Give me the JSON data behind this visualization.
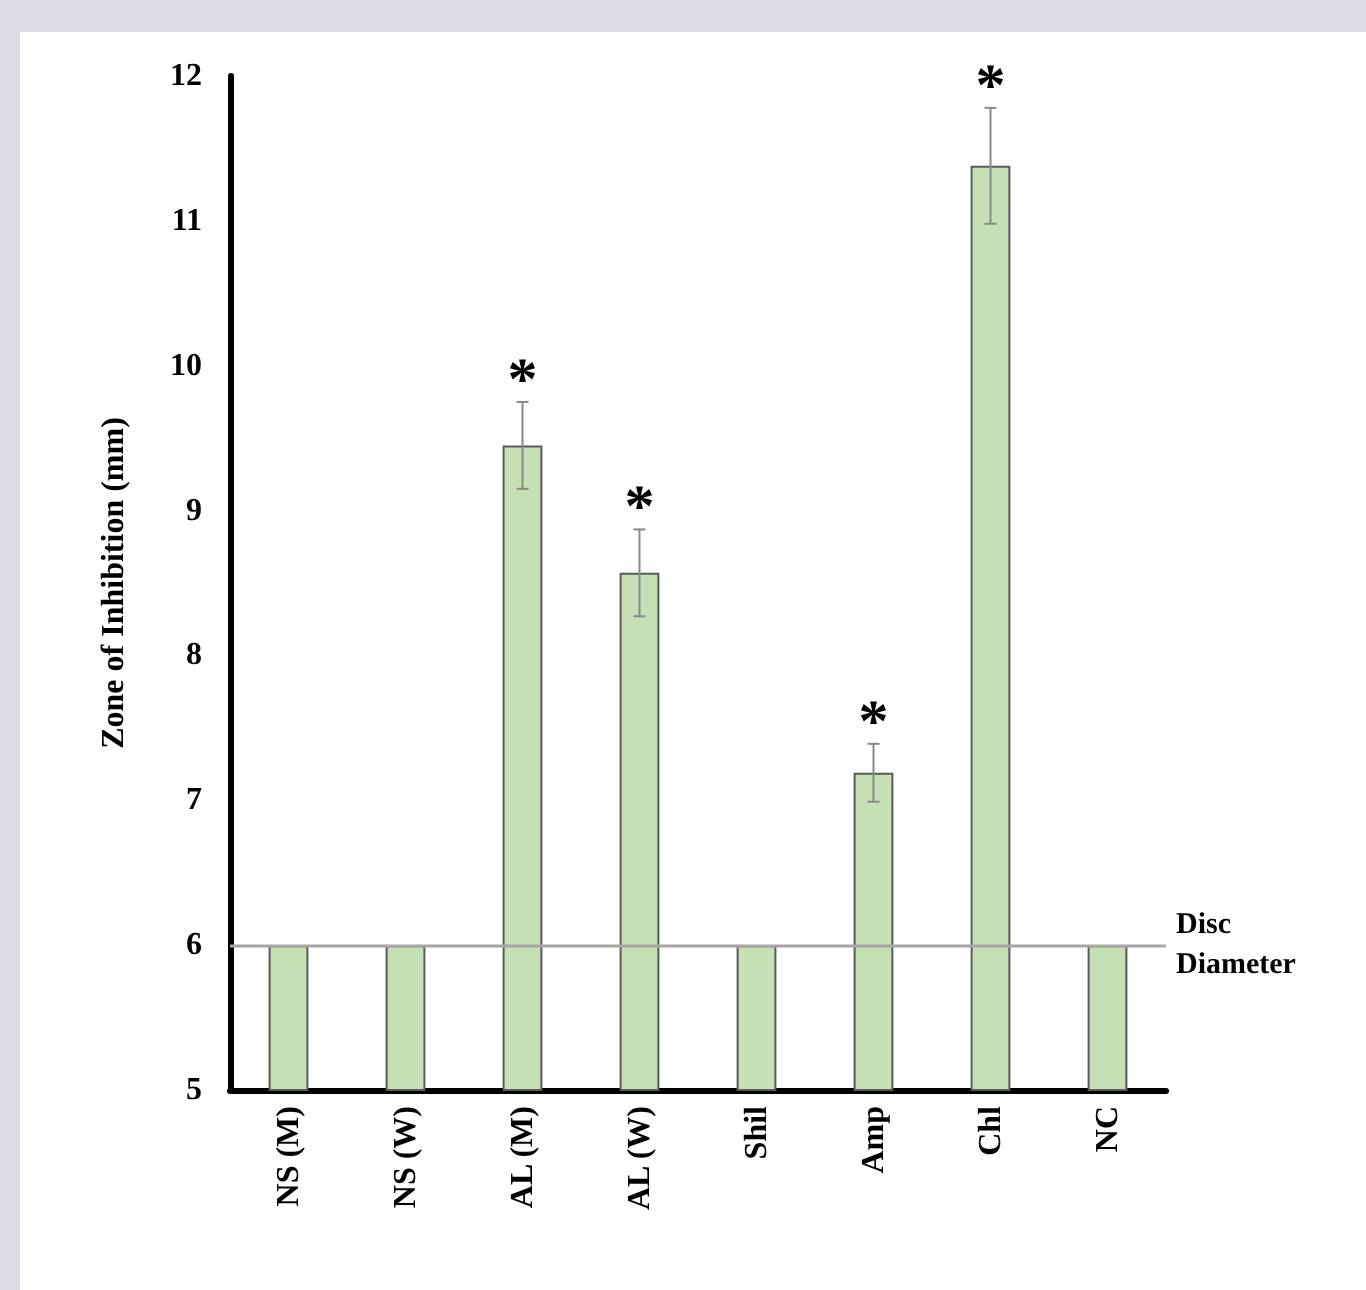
{
  "chart_data": {
    "type": "bar",
    "ylabel": "Zone of Inhibition (mm)",
    "categories": [
      "NS (M)",
      "NS (W)",
      "AL (M)",
      "AL (W)",
      "Shil",
      "Amp",
      "Chl",
      "NC"
    ],
    "values": [
      6,
      6,
      9.45,
      8.57,
      6,
      7.19,
      11.38,
      6
    ],
    "errors": [
      null,
      null,
      0.3,
      0.3,
      null,
      0.2,
      0.4,
      null
    ],
    "color": "#c5e0b4",
    "ylim": [
      5,
      12
    ],
    "yticks": [
      5,
      6,
      7,
      8,
      9,
      10,
      11,
      12
    ],
    "grid": false,
    "ref_lines": [
      {
        "axis": "y",
        "value": 6,
        "label": "Disc Diameter",
        "color": "#a6a6a6"
      }
    ],
    "annotations": [
      "*",
      "*",
      "*",
      "*"
    ]
  }
}
